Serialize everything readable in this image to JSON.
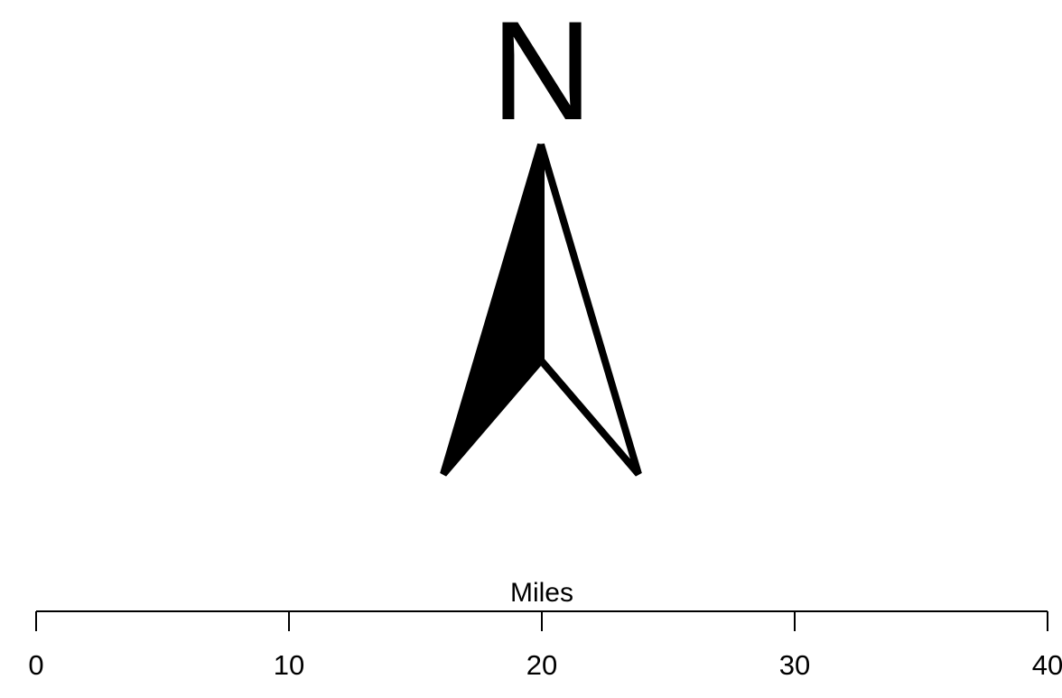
{
  "north_arrow": {
    "label": "N",
    "left_half_fill": "#000000",
    "right_half_fill": "#ffffff",
    "stroke": "#000000"
  },
  "scale_bar": {
    "title": "Miles",
    "unit": "miles",
    "range": [
      0,
      40
    ],
    "ticks": [
      {
        "value": 0,
        "label": "0"
      },
      {
        "value": 10,
        "label": "10"
      },
      {
        "value": 20,
        "label": "20"
      },
      {
        "value": 30,
        "label": "30"
      },
      {
        "value": 40,
        "label": "40"
      }
    ],
    "color": "#000000"
  }
}
